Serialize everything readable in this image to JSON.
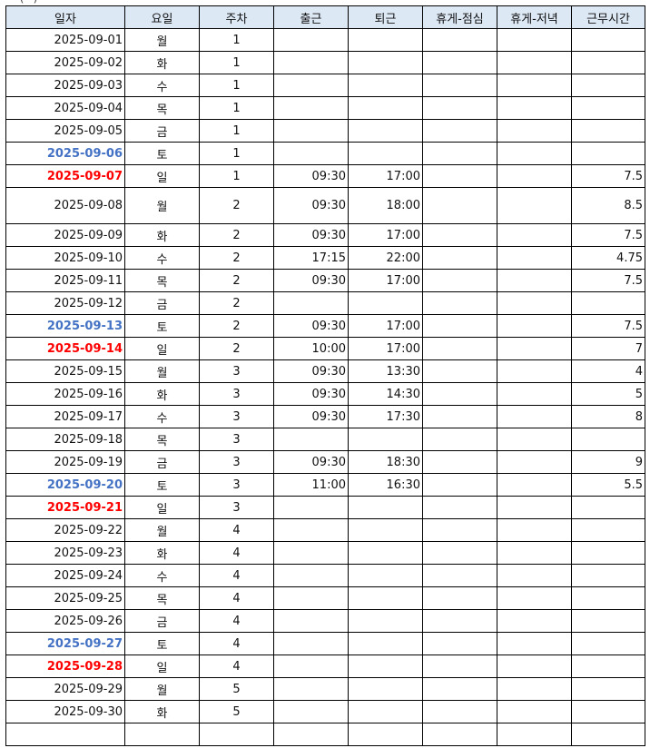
{
  "caption_fragment": "· · (· ·) ·",
  "headers": [
    "일자",
    "요일",
    "주차",
    "출근",
    "퇴근",
    "휴게-점심",
    "휴게-저녁",
    "근무시간"
  ],
  "weekday_colors": {
    "saturday": "#4472c4",
    "sunday": "#ff0000"
  },
  "rows": [
    {
      "date": "2025-09-01",
      "day": "월",
      "week": "1",
      "in": "",
      "out": "",
      "lunch": "",
      "dinner": "",
      "hours": "",
      "kind": "weekday"
    },
    {
      "date": "2025-09-02",
      "day": "화",
      "week": "1",
      "in": "",
      "out": "",
      "lunch": "",
      "dinner": "",
      "hours": "",
      "kind": "weekday"
    },
    {
      "date": "2025-09-03",
      "day": "수",
      "week": "1",
      "in": "",
      "out": "",
      "lunch": "",
      "dinner": "",
      "hours": "",
      "kind": "weekday"
    },
    {
      "date": "2025-09-04",
      "day": "목",
      "week": "1",
      "in": "",
      "out": "",
      "lunch": "",
      "dinner": "",
      "hours": "",
      "kind": "weekday"
    },
    {
      "date": "2025-09-05",
      "day": "금",
      "week": "1",
      "in": "",
      "out": "",
      "lunch": "",
      "dinner": "",
      "hours": "",
      "kind": "weekday"
    },
    {
      "date": "2025-09-06",
      "day": "토",
      "week": "1",
      "in": "",
      "out": "",
      "lunch": "",
      "dinner": "",
      "hours": "",
      "kind": "sat"
    },
    {
      "date": "2025-09-07",
      "day": "일",
      "week": "1",
      "in": "09:30",
      "out": "17:00",
      "lunch": "",
      "dinner": "",
      "hours": "7.5",
      "kind": "sun"
    },
    {
      "date": "2025-09-08",
      "day": "월",
      "week": "2",
      "in": "09:30",
      "out": "18:00",
      "lunch": "",
      "dinner": "",
      "hours": "8.5",
      "kind": "weekday",
      "tall": true
    },
    {
      "date": "2025-09-09",
      "day": "화",
      "week": "2",
      "in": "09:30",
      "out": "17:00",
      "lunch": "",
      "dinner": "",
      "hours": "7.5",
      "kind": "weekday"
    },
    {
      "date": "2025-09-10",
      "day": "수",
      "week": "2",
      "in": "17:15",
      "out": "22:00",
      "lunch": "",
      "dinner": "",
      "hours": "4.75",
      "kind": "weekday"
    },
    {
      "date": "2025-09-11",
      "day": "목",
      "week": "2",
      "in": "09:30",
      "out": "17:00",
      "lunch": "",
      "dinner": "",
      "hours": "7.5",
      "kind": "weekday"
    },
    {
      "date": "2025-09-12",
      "day": "금",
      "week": "2",
      "in": "",
      "out": "",
      "lunch": "",
      "dinner": "",
      "hours": "",
      "kind": "weekday"
    },
    {
      "date": "2025-09-13",
      "day": "토",
      "week": "2",
      "in": "09:30",
      "out": "17:00",
      "lunch": "",
      "dinner": "",
      "hours": "7.5",
      "kind": "sat"
    },
    {
      "date": "2025-09-14",
      "day": "일",
      "week": "2",
      "in": "10:00",
      "out": "17:00",
      "lunch": "",
      "dinner": "",
      "hours": "7",
      "kind": "sun"
    },
    {
      "date": "2025-09-15",
      "day": "월",
      "week": "3",
      "in": "09:30",
      "out": "13:30",
      "lunch": "",
      "dinner": "",
      "hours": "4",
      "kind": "weekday"
    },
    {
      "date": "2025-09-16",
      "day": "화",
      "week": "3",
      "in": "09:30",
      "out": "14:30",
      "lunch": "",
      "dinner": "",
      "hours": "5",
      "kind": "weekday"
    },
    {
      "date": "2025-09-17",
      "day": "수",
      "week": "3",
      "in": "09:30",
      "out": "17:30",
      "lunch": "",
      "dinner": "",
      "hours": "8",
      "kind": "weekday"
    },
    {
      "date": "2025-09-18",
      "day": "목",
      "week": "3",
      "in": "",
      "out": "",
      "lunch": "",
      "dinner": "",
      "hours": "",
      "kind": "weekday"
    },
    {
      "date": "2025-09-19",
      "day": "금",
      "week": "3",
      "in": "09:30",
      "out": "18:30",
      "lunch": "",
      "dinner": "",
      "hours": "9",
      "kind": "weekday"
    },
    {
      "date": "2025-09-20",
      "day": "토",
      "week": "3",
      "in": "11:00",
      "out": "16:30",
      "lunch": "",
      "dinner": "",
      "hours": "5.5",
      "kind": "sat"
    },
    {
      "date": "2025-09-21",
      "day": "일",
      "week": "3",
      "in": "",
      "out": "",
      "lunch": "",
      "dinner": "",
      "hours": "",
      "kind": "sun"
    },
    {
      "date": "2025-09-22",
      "day": "월",
      "week": "4",
      "in": "",
      "out": "",
      "lunch": "",
      "dinner": "",
      "hours": "",
      "kind": "weekday"
    },
    {
      "date": "2025-09-23",
      "day": "화",
      "week": "4",
      "in": "",
      "out": "",
      "lunch": "",
      "dinner": "",
      "hours": "",
      "kind": "weekday"
    },
    {
      "date": "2025-09-24",
      "day": "수",
      "week": "4",
      "in": "",
      "out": "",
      "lunch": "",
      "dinner": "",
      "hours": "",
      "kind": "weekday"
    },
    {
      "date": "2025-09-25",
      "day": "목",
      "week": "4",
      "in": "",
      "out": "",
      "lunch": "",
      "dinner": "",
      "hours": "",
      "kind": "weekday"
    },
    {
      "date": "2025-09-26",
      "day": "금",
      "week": "4",
      "in": "",
      "out": "",
      "lunch": "",
      "dinner": "",
      "hours": "",
      "kind": "weekday"
    },
    {
      "date": "2025-09-27",
      "day": "토",
      "week": "4",
      "in": "",
      "out": "",
      "lunch": "",
      "dinner": "",
      "hours": "",
      "kind": "sat"
    },
    {
      "date": "2025-09-28",
      "day": "일",
      "week": "4",
      "in": "",
      "out": "",
      "lunch": "",
      "dinner": "",
      "hours": "",
      "kind": "sun"
    },
    {
      "date": "2025-09-29",
      "day": "월",
      "week": "5",
      "in": "",
      "out": "",
      "lunch": "",
      "dinner": "",
      "hours": "",
      "kind": "weekday"
    },
    {
      "date": "2025-09-30",
      "day": "화",
      "week": "5",
      "in": "",
      "out": "",
      "lunch": "",
      "dinner": "",
      "hours": "",
      "kind": "weekday"
    },
    {
      "date": "",
      "day": "",
      "week": "",
      "in": "",
      "out": "",
      "lunch": "",
      "dinner": "",
      "hours": "",
      "kind": "blank"
    }
  ]
}
